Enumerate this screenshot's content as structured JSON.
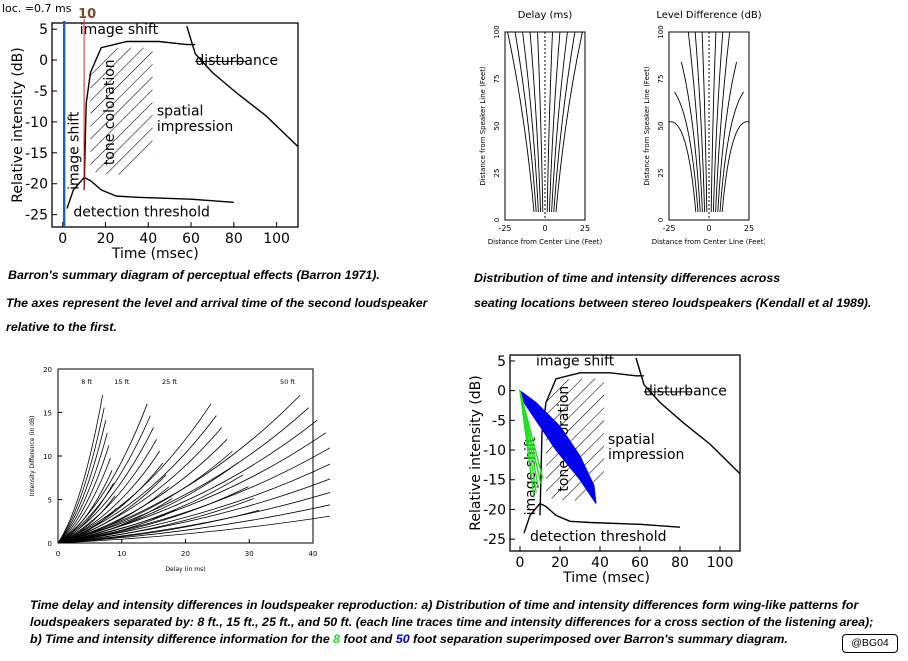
{
  "barron_top": {
    "loc_label": "loc. =0.7 ms",
    "marker_label": "10",
    "ylabel": "Relative intensity (dB)",
    "xlabel": "Time (msec)",
    "y_ticks": [
      "5",
      "0",
      "-5",
      "-10",
      "-15",
      "-20",
      "-25"
    ],
    "x_ticks": [
      "0",
      "20",
      "40",
      "60",
      "80",
      "100"
    ],
    "regions": {
      "image_shift_top": "image shift",
      "disturbance": "disturbance",
      "image_shift_vertical": "image shift",
      "tone_coloration": "tone coloration",
      "spatial": "spatial",
      "impression": "impression",
      "detection_threshold": "detection threshold"
    }
  },
  "kendall": {
    "left_title": "Delay (ms)",
    "right_title": "Level Difference (dB)",
    "ylabel": "Distance from Speaker Line (Feet)",
    "xlabel": "Distance from Center Line (Feet)",
    "y_ticks": [
      "100",
      "75",
      "50",
      "25",
      "0"
    ],
    "x_ticks": [
      "-25",
      "0",
      "25"
    ]
  },
  "captions": {
    "barron_1": "Barron's summary diagram of perceptual effects (Barron 1971).",
    "barron_2": "The axes represent the level and arrival time of the second loudspeaker",
    "barron_3": "relative to the first.",
    "kendall_1": "Distribution of time and intensity differences across",
    "kendall_2": "seating locations between stereo loudspeakers (Kendall et al 1989).",
    "bottom_1": "Time delay and intensity differences in loudspeaker reproduction:  a) Distribution of time and intensity differences form wing-like patterns for",
    "bottom_2": "loudspeakers separated by: 8 ft., 15 ft., 25 ft., and 50 ft. (each line traces time and intensity differences for a cross section of the listening area);",
    "bottom_3_a": "b) Time and intensity difference information for the ",
    "bottom_3_8": "8",
    "bottom_3_b": " foot and ",
    "bottom_3_50": "50",
    "bottom_3_c": " foot separation superimposed over Barron's summary diagram.",
    "credit": "@BG04"
  },
  "wings": {
    "ylabel": "Intensity Difference (in dB)",
    "xlabel": "Delay (in ms)",
    "series_labels": [
      "8 ft",
      "15 ft",
      "25 ft",
      "50 ft"
    ],
    "y_ticks": [
      "20",
      "15",
      "10",
      "5",
      "0"
    ],
    "x_ticks": [
      "0",
      "10",
      "20",
      "30",
      "40"
    ]
  },
  "barron_bottom": {
    "ylabel": "Relative intensity (dB)",
    "xlabel": "Time (msec)",
    "y_ticks": [
      "5",
      "0",
      "-5",
      "-10",
      "-15",
      "-20",
      "-25"
    ],
    "x_ticks": [
      "0",
      "20",
      "40",
      "60",
      "80",
      "100"
    ],
    "regions": {
      "image_shift_top": "image shift",
      "disturbance": "disturbance",
      "image_shift_vertical": "image shift",
      "tone_coloration": "tone coloration",
      "spatial": "spatial",
      "impression": "impression",
      "detection_threshold": "detection threshold"
    },
    "overlay_colors": {
      "ft8": "#22dd22",
      "ft50": "#0000ee"
    }
  },
  "chart_data": [
    {
      "type": "line",
      "ylabel": "Relative intensity (dB)",
      "xlabel": "Time (msec)",
      "xlim": [
        -5,
        110
      ],
      "ylim": [
        -27,
        6
      ],
      "series": [
        {
          "x": [
            10,
            11,
            13,
            18,
            30,
            45,
            58,
            62
          ],
          "y": [
            -21,
            -7,
            -2,
            2,
            3,
            3,
            2.5,
            2.5
          ]
        },
        {
          "x": [
            58,
            62,
            70,
            82,
            95,
            110
          ],
          "y": [
            5.5,
            1,
            -2,
            -5.5,
            -9,
            -14
          ]
        },
        {
          "x": [
            2,
            5,
            10,
            13,
            18,
            25,
            35,
            60,
            80
          ],
          "y": [
            -24,
            -21,
            -19,
            -19.5,
            -21,
            -22,
            -22.2,
            -22.5,
            -23
          ]
        }
      ]
    },
    {
      "type": "line",
      "title": "Delay (ms)",
      "xlabel": "Distance from Center Line (Feet)",
      "ylabel": "Distance from Speaker Line (Feet)",
      "xlim": [
        -25,
        25
      ],
      "ylim": [
        0,
        100
      ]
    },
    {
      "type": "line",
      "title": "Level Difference (dB)",
      "xlabel": "Distance from Center Line (Feet)",
      "ylabel": "Distance from Speaker Line (Feet)",
      "xlim": [
        -25,
        25
      ],
      "ylim": [
        0,
        100
      ]
    },
    {
      "type": "line",
      "xlabel": "Delay (in ms)",
      "ylabel": "Intensity Difference (in dB)",
      "xlim": [
        0,
        40
      ],
      "ylim": [
        0,
        20
      ],
      "series": [
        {
          "name": "8 ft",
          "x": [
            0,
            1,
            2,
            3,
            4,
            5,
            6,
            7
          ],
          "y": [
            0,
            1.5,
            3,
            5.5,
            8,
            11,
            14,
            17
          ]
        },
        {
          "name": "15 ft",
          "x": [
            0,
            3,
            6,
            9,
            12,
            14
          ],
          "y": [
            0,
            2,
            5,
            8.5,
            12.5,
            16
          ]
        },
        {
          "name": "25 ft",
          "x": [
            0,
            5,
            10,
            15,
            20,
            24
          ],
          "y": [
            0,
            2,
            5,
            8.5,
            12.5,
            16
          ]
        },
        {
          "name": "50 ft",
          "x": [
            0,
            10,
            20,
            30,
            38
          ],
          "y": [
            0,
            2.5,
            6,
            11.5,
            17
          ]
        }
      ]
    },
    {
      "type": "line",
      "ylabel": "Relative intensity (dB)",
      "xlabel": "Time (msec)",
      "xlim": [
        -5,
        110
      ],
      "ylim": [
        -27,
        6
      ],
      "series": [
        {
          "x": [
            10,
            11,
            13,
            18,
            30,
            45,
            58,
            62
          ],
          "y": [
            -21,
            -7,
            -2,
            2,
            3,
            3,
            2.5,
            2.5
          ]
        },
        {
          "x": [
            58,
            62,
            70,
            82,
            95,
            110
          ],
          "y": [
            5.5,
            1,
            -2,
            -5.5,
            -9,
            -14
          ]
        },
        {
          "x": [
            2,
            5,
            10,
            13,
            18,
            25,
            35,
            60,
            80
          ],
          "y": [
            -24,
            -21,
            -19,
            -19.5,
            -21,
            -22,
            -22.2,
            -22.5,
            -23
          ]
        },
        {
          "x": [
            0,
            3,
            6,
            10
          ],
          "y": [
            0,
            -6,
            -12,
            -18
          ]
        },
        {
          "x": [
            0,
            10,
            20,
            30,
            38
          ],
          "y": [
            0,
            -5,
            -10,
            -15,
            -19
          ]
        }
      ]
    }
  ]
}
